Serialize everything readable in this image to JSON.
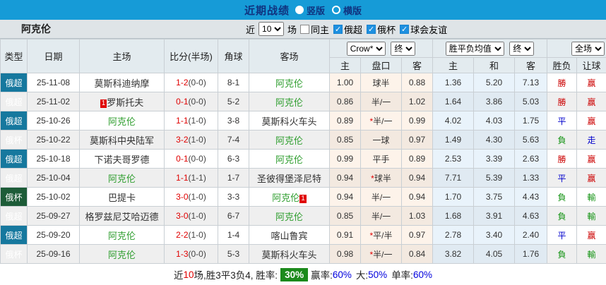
{
  "topbar": {
    "title": "近期战绩",
    "radios": [
      {
        "label": "竖版",
        "selected": true
      },
      {
        "label": "横版",
        "selected": false
      }
    ]
  },
  "filters": {
    "team": "阿克伦",
    "near_label": "近",
    "near_value": "10",
    "games_label": "场",
    "checkboxes": [
      {
        "label": "同主",
        "checked": false
      },
      {
        "label": "俄超",
        "checked": true
      },
      {
        "label": "俄杯",
        "checked": true
      },
      {
        "label": "球会友谊",
        "checked": true
      }
    ]
  },
  "table": {
    "columns": {
      "type": "类型",
      "date": "日期",
      "home": "主场",
      "score": "比分(半场)",
      "corner": "角球",
      "away": "客场",
      "odds_home": "主",
      "odds_handicap": "盘口",
      "odds_away": "客",
      "avg_home": "主",
      "avg_draw": "和",
      "avg_away": "客",
      "result": "胜负",
      "let_goal": "让球"
    },
    "selects": {
      "odds_source": "Crow*",
      "odds_final": "终",
      "avg_source": "胜平负均值",
      "avg_final": "终",
      "scope": "全场"
    },
    "rows": [
      {
        "league": "俄超",
        "date": "25-11-08",
        "home": {
          "name": "莫斯科迪纳摩",
          "green": false,
          "badge": null,
          "badge_pos": null
        },
        "score_ft": "1-2",
        "score_ht": "(0-0)",
        "corner": "8-1",
        "away": {
          "name": "阿克伦",
          "green": true,
          "badge": null,
          "badge_pos": null
        },
        "odds": {
          "home": "1.00",
          "handicap": "球半",
          "star": false,
          "away": "0.88"
        },
        "avg": {
          "home": "1.36",
          "draw": "5.20",
          "away": "7.13"
        },
        "result": {
          "text": "勝",
          "type": "win"
        },
        "handicap_result": {
          "text": "赢",
          "type": "win"
        }
      },
      {
        "league": "俄超",
        "date": "25-11-02",
        "home": {
          "name": "罗斯托夫",
          "green": false,
          "badge": "1",
          "badge_pos": "before"
        },
        "score_ft": "0-1",
        "score_ht": "(0-0)",
        "corner": "5-2",
        "away": {
          "name": "阿克伦",
          "green": true,
          "badge": null,
          "badge_pos": null
        },
        "odds": {
          "home": "0.86",
          "handicap": "半/一",
          "star": false,
          "away": "1.02"
        },
        "avg": {
          "home": "1.64",
          "draw": "3.86",
          "away": "5.03"
        },
        "result": {
          "text": "勝",
          "type": "win"
        },
        "handicap_result": {
          "text": "赢",
          "type": "win"
        }
      },
      {
        "league": "俄超",
        "date": "25-10-26",
        "home": {
          "name": "阿克伦",
          "green": true,
          "badge": null,
          "badge_pos": null
        },
        "score_ft": "1-1",
        "score_ht": "(1-0)",
        "corner": "3-8",
        "away": {
          "name": "莫斯科火车头",
          "green": false,
          "badge": null,
          "badge_pos": null
        },
        "odds": {
          "home": "0.89",
          "handicap": "半/一",
          "star": true,
          "away": "0.99"
        },
        "avg": {
          "home": "4.02",
          "draw": "4.03",
          "away": "1.75"
        },
        "result": {
          "text": "平",
          "type": "draw"
        },
        "handicap_result": {
          "text": "赢",
          "type": "win"
        }
      },
      {
        "league": "俄杯",
        "date": "25-10-22",
        "home": {
          "name": "莫斯科中央陆军",
          "green": false,
          "badge": null,
          "badge_pos": null
        },
        "score_ft": "3-2",
        "score_ht": "(1-0)",
        "corner": "7-4",
        "away": {
          "name": "阿克伦",
          "green": true,
          "badge": null,
          "badge_pos": null
        },
        "odds": {
          "home": "0.85",
          "handicap": "一球",
          "star": false,
          "away": "0.97"
        },
        "avg": {
          "home": "1.49",
          "draw": "4.30",
          "away": "5.63"
        },
        "result": {
          "text": "負",
          "type": "lose"
        },
        "handicap_result": {
          "text": "走",
          "type": "push"
        }
      },
      {
        "league": "俄超",
        "date": "25-10-18",
        "home": {
          "name": "下诺夫哥罗德",
          "green": false,
          "badge": null,
          "badge_pos": null
        },
        "score_ft": "0-1",
        "score_ht": "(0-0)",
        "corner": "6-3",
        "away": {
          "name": "阿克伦",
          "green": true,
          "badge": null,
          "badge_pos": null
        },
        "odds": {
          "home": "0.99",
          "handicap": "平手",
          "star": false,
          "away": "0.89"
        },
        "avg": {
          "home": "2.53",
          "draw": "3.39",
          "away": "2.63"
        },
        "result": {
          "text": "勝",
          "type": "win"
        },
        "handicap_result": {
          "text": "赢",
          "type": "win"
        }
      },
      {
        "league": "俄超",
        "date": "25-10-04",
        "home": {
          "name": "阿克伦",
          "green": true,
          "badge": null,
          "badge_pos": null
        },
        "score_ft": "1-1",
        "score_ht": "(1-1)",
        "corner": "1-7",
        "away": {
          "name": "圣彼得堡泽尼特",
          "green": false,
          "badge": null,
          "badge_pos": null
        },
        "odds": {
          "home": "0.94",
          "handicap": "球半",
          "star": true,
          "away": "0.94"
        },
        "avg": {
          "home": "7.71",
          "draw": "5.39",
          "away": "1.33"
        },
        "result": {
          "text": "平",
          "type": "draw"
        },
        "handicap_result": {
          "text": "赢",
          "type": "win"
        }
      },
      {
        "league": "俄杯",
        "date": "25-10-02",
        "home": {
          "name": "巴提卡",
          "green": false,
          "badge": null,
          "badge_pos": null
        },
        "score_ft": "3-0",
        "score_ht": "(1-0)",
        "corner": "3-3",
        "away": {
          "name": "阿克伦",
          "green": true,
          "badge": "1",
          "badge_pos": "after"
        },
        "odds": {
          "home": "0.94",
          "handicap": "半/一",
          "star": false,
          "away": "0.94"
        },
        "avg": {
          "home": "1.70",
          "draw": "3.75",
          "away": "4.43"
        },
        "result": {
          "text": "負",
          "type": "lose"
        },
        "handicap_result": {
          "text": "輸",
          "type": "lose"
        }
      },
      {
        "league": "俄超",
        "date": "25-09-27",
        "home": {
          "name": "格罗兹尼艾哈迈德",
          "green": false,
          "badge": null,
          "badge_pos": null
        },
        "score_ft": "3-0",
        "score_ht": "(1-0)",
        "corner": "6-7",
        "away": {
          "name": "阿克伦",
          "green": true,
          "badge": null,
          "badge_pos": null
        },
        "odds": {
          "home": "0.85",
          "handicap": "半/一",
          "star": false,
          "away": "1.03"
        },
        "avg": {
          "home": "1.68",
          "draw": "3.91",
          "away": "4.63"
        },
        "result": {
          "text": "負",
          "type": "lose"
        },
        "handicap_result": {
          "text": "輸",
          "type": "lose"
        }
      },
      {
        "league": "俄超",
        "date": "25-09-20",
        "home": {
          "name": "阿克伦",
          "green": true,
          "badge": null,
          "badge_pos": null
        },
        "score_ft": "2-2",
        "score_ht": "(1-0)",
        "corner": "1-4",
        "away": {
          "name": "喀山鲁宾",
          "green": false,
          "badge": null,
          "badge_pos": null
        },
        "odds": {
          "home": "0.91",
          "handicap": "平/半",
          "star": true,
          "away": "0.97"
        },
        "avg": {
          "home": "2.78",
          "draw": "3.40",
          "away": "2.40"
        },
        "result": {
          "text": "平",
          "type": "draw"
        },
        "handicap_result": {
          "text": "赢",
          "type": "win"
        }
      },
      {
        "league": "俄杯",
        "date": "25-09-16",
        "home": {
          "name": "阿克伦",
          "green": true,
          "badge": null,
          "badge_pos": null
        },
        "score_ft": "1-3",
        "score_ht": "(0-0)",
        "corner": "5-3",
        "away": {
          "name": "莫斯科火车头",
          "green": false,
          "badge": null,
          "badge_pos": null
        },
        "odds": {
          "home": "0.98",
          "handicap": "半/一",
          "star": true,
          "away": "0.84"
        },
        "avg": {
          "home": "3.82",
          "draw": "4.05",
          "away": "1.76"
        },
        "result": {
          "text": "負",
          "type": "lose"
        },
        "handicap_result": {
          "text": "輸",
          "type": "lose"
        }
      }
    ]
  },
  "summary": {
    "near_label": "近",
    "near_value": "10",
    "record_text": "场,胜3平3负4, 胜率:",
    "win_rate": "30%",
    "win_label": "赢率:",
    "win_value": "60%",
    "big_label": "大:",
    "big_value": "50%",
    "single_label": "单率:",
    "single_value": "60%"
  },
  "colors": {
    "topbar_blue": "#169bd7",
    "title_navy": "#10337f",
    "league_super": "#16789e",
    "league_cup": "#1d5c38",
    "team_green": "#2f9e2f",
    "score_red": "#e00000",
    "result_win_red": "#cc0000",
    "result_draw_blue": "#0000cc",
    "result_lose_green": "#169416",
    "odds_col_peach": "#fdf3ea",
    "avg_col_blue": "#e9f3fb",
    "rate_box_green": "#1c8a1c"
  }
}
